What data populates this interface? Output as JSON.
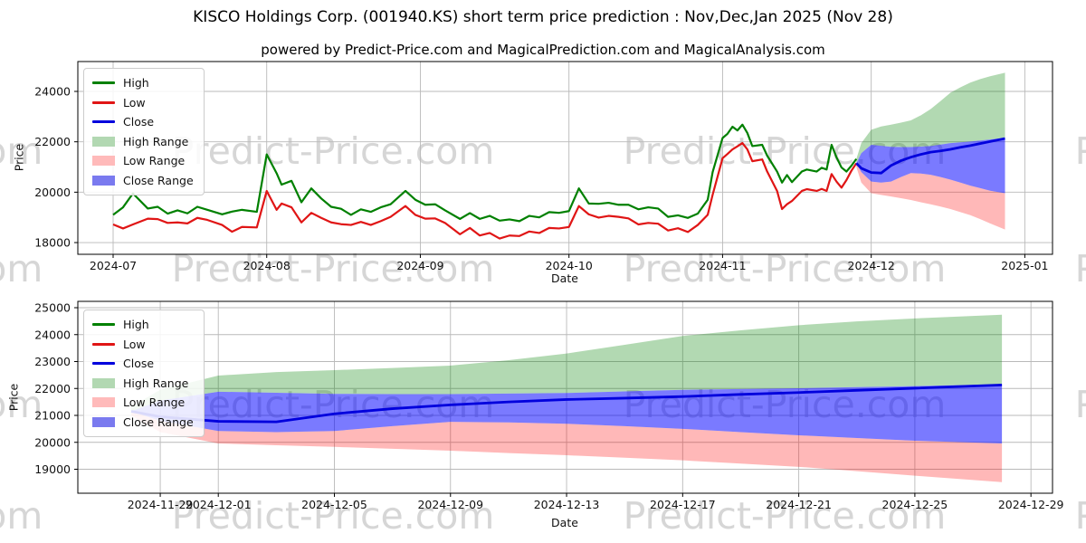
{
  "title": "KISCO Holdings Corp. (001940.KS) short term price prediction : Nov,Dec,Jan 2025 (Nov 28)",
  "subtitle": "powered by Predict-Price.com and MagicalPrediction.com and MagicalAnalysis.com",
  "watermark": {
    "text": "Predict-Price.com"
  },
  "colors": {
    "high": "#008000",
    "low": "#e01515",
    "close": "#0000dd",
    "high_range_fill": "rgba(0,128,0,0.30)",
    "low_range_fill": "rgba(255,0,0,0.28)",
    "close_range_fill": "rgba(0,0,255,0.52)",
    "high_range_swatch": "#b2d8b2",
    "low_range_swatch": "#ffbaba",
    "close_range_swatch": "#7a7aef",
    "grid": "#b9b9b9",
    "frame": "#000000"
  },
  "legend": {
    "items": [
      {
        "label": "High",
        "kind": "line",
        "color": "#008000"
      },
      {
        "label": "Low",
        "kind": "line",
        "color": "#e01515"
      },
      {
        "label": "Close",
        "kind": "line",
        "color": "#0000dd"
      },
      {
        "label": "High Range",
        "kind": "patch",
        "color": "#b2d8b2"
      },
      {
        "label": "Low Range",
        "kind": "patch",
        "color": "#ffbaba"
      },
      {
        "label": "Close Range",
        "kind": "patch",
        "color": "#7a7aef"
      }
    ]
  },
  "chart_data": [
    {
      "type": "line",
      "name": "historical_and_prediction",
      "xlabel": "Date",
      "ylabel": "Price",
      "x_unit": "days since 2024-07-01",
      "grid": true,
      "legend_position": "upper left",
      "xlim_days": [
        -7.1,
        189.6
      ],
      "ylim": [
        17530,
        25190
      ],
      "xticks": [
        {
          "label": "2024-07",
          "day": 0
        },
        {
          "label": "2024-08",
          "day": 31
        },
        {
          "label": "2024-09",
          "day": 62
        },
        {
          "label": "2024-10",
          "day": 92
        },
        {
          "label": "2024-11",
          "day": 123
        },
        {
          "label": "2024-12",
          "day": 153
        },
        {
          "label": "2025-01",
          "day": 184
        }
      ],
      "yticks": [
        18000,
        20000,
        22000,
        24000
      ],
      "series": {
        "high": {
          "name": "High",
          "days": [
            0,
            2,
            4,
            7,
            9,
            11,
            13,
            15,
            17,
            19,
            22,
            24,
            26,
            29,
            31,
            33,
            34,
            36,
            38,
            40,
            42,
            44,
            46,
            48,
            50,
            52,
            54,
            56,
            59,
            61,
            63,
            65,
            67,
            70,
            72,
            74,
            76,
            78,
            80,
            82,
            84,
            86,
            88,
            90,
            92,
            94,
            96,
            98,
            100,
            102,
            104,
            106,
            108,
            110,
            112,
            114,
            116,
            118,
            120,
            121,
            123,
            124,
            125,
            126,
            127,
            128,
            129,
            131,
            132,
            134,
            135,
            136,
            137,
            139,
            140,
            142,
            143,
            144,
            145,
            146,
            147,
            148,
            149,
            150
          ],
          "values": [
            19100,
            19400,
            19950,
            19350,
            19420,
            19150,
            19280,
            19160,
            19420,
            19300,
            19120,
            19230,
            19300,
            19220,
            21500,
            20750,
            20300,
            20450,
            19600,
            20150,
            19750,
            19420,
            19340,
            19100,
            19320,
            19220,
            19400,
            19520,
            20050,
            19700,
            19500,
            19520,
            19280,
            18940,
            19170,
            18940,
            19060,
            18870,
            18920,
            18850,
            19060,
            19000,
            19210,
            19180,
            19250,
            20150,
            19550,
            19540,
            19580,
            19500,
            19500,
            19320,
            19400,
            19350,
            19020,
            19080,
            18980,
            19150,
            19700,
            20800,
            22150,
            22320,
            22600,
            22450,
            22680,
            22350,
            21830,
            21880,
            21450,
            20820,
            20380,
            20680,
            20400,
            20820,
            20900,
            20820,
            20970,
            20900,
            21880,
            21380,
            20980,
            20820,
            21050,
            21320
          ]
        },
        "low": {
          "name": "Low",
          "days": [
            0,
            2,
            4,
            7,
            9,
            11,
            13,
            15,
            17,
            19,
            22,
            24,
            26,
            29,
            31,
            33,
            34,
            36,
            38,
            40,
            42,
            44,
            46,
            48,
            50,
            52,
            54,
            56,
            59,
            61,
            63,
            65,
            67,
            70,
            72,
            74,
            76,
            78,
            80,
            82,
            84,
            86,
            88,
            90,
            92,
            94,
            96,
            98,
            100,
            102,
            104,
            106,
            108,
            110,
            112,
            114,
            116,
            118,
            120,
            121,
            123,
            124,
            125,
            126,
            127,
            128,
            129,
            131,
            132,
            134,
            135,
            136,
            137,
            139,
            140,
            142,
            143,
            144,
            145,
            146,
            147,
            148,
            149,
            150
          ],
          "values": [
            18720,
            18560,
            18720,
            18950,
            18930,
            18780,
            18800,
            18760,
            18980,
            18900,
            18700,
            18430,
            18620,
            18600,
            20050,
            19300,
            19550,
            19400,
            18800,
            19180,
            18980,
            18800,
            18730,
            18700,
            18820,
            18700,
            18850,
            19020,
            19450,
            19100,
            18950,
            18960,
            18780,
            18330,
            18580,
            18280,
            18380,
            18160,
            18280,
            18260,
            18440,
            18380,
            18580,
            18560,
            18620,
            19450,
            19120,
            18990,
            19060,
            19020,
            18960,
            18720,
            18780,
            18750,
            18480,
            18570,
            18420,
            18700,
            19100,
            19900,
            21350,
            21520,
            21700,
            21820,
            21950,
            21700,
            21230,
            21300,
            20820,
            20050,
            19330,
            19520,
            19650,
            20050,
            20120,
            20050,
            20130,
            20050,
            20720,
            20420,
            20180,
            20480,
            20850,
            21150
          ]
        }
      },
      "prediction": {
        "days": [
          150,
          151,
          153,
          155,
          157,
          159,
          161,
          163,
          165,
          167,
          169,
          171,
          173,
          175,
          177,
          180
        ],
        "close": [
          21150,
          20950,
          20780,
          20760,
          21060,
          21250,
          21390,
          21500,
          21590,
          21640,
          21700,
          21780,
          21850,
          21930,
          22010,
          22130
        ],
        "close_max": [
          21150,
          21550,
          21880,
          21840,
          21800,
          21790,
          21790,
          21810,
          21830,
          21890,
          21950,
          21980,
          22010,
          22050,
          22090,
          22160
        ],
        "close_min": [
          21150,
          20800,
          20420,
          20380,
          20420,
          20600,
          20760,
          20740,
          20690,
          20600,
          20500,
          20380,
          20260,
          20160,
          20060,
          19960
        ],
        "high_max": [
          21320,
          21950,
          22480,
          22610,
          22680,
          22760,
          22850,
          23050,
          23300,
          23620,
          23950,
          24160,
          24350,
          24490,
          24600,
          24740
        ],
        "low_min": [
          21000,
          20380,
          19960,
          19890,
          19830,
          19760,
          19690,
          19600,
          19520,
          19430,
          19330,
          19210,
          19090,
          18930,
          18760,
          18520
        ]
      }
    },
    {
      "type": "line",
      "name": "prediction_detail",
      "xlabel": "Date",
      "ylabel": "Price",
      "x_unit": "days since 2024-07-01",
      "grid": true,
      "legend_position": "upper left",
      "xlim_days": [
        148.2,
        181.7
      ],
      "ylim": [
        18110,
        25235
      ],
      "xticks": [
        {
          "label": "2024-11-29",
          "day": 151
        },
        {
          "label": "2024-12-01",
          "day": 153
        },
        {
          "label": "2024-12-05",
          "day": 157
        },
        {
          "label": "2024-12-09",
          "day": 161
        },
        {
          "label": "2024-12-13",
          "day": 165
        },
        {
          "label": "2024-12-17",
          "day": 169
        },
        {
          "label": "2024-12-21",
          "day": 173
        },
        {
          "label": "2024-12-25",
          "day": 177
        },
        {
          "label": "2024-12-29",
          "day": 181
        }
      ],
      "yticks": [
        19000,
        20000,
        21000,
        22000,
        23000,
        24000,
        25000
      ],
      "prediction": {
        "days": [
          150,
          151,
          153,
          155,
          157,
          159,
          161,
          163,
          165,
          167,
          169,
          171,
          173,
          175,
          177,
          180
        ],
        "close": [
          21150,
          20950,
          20780,
          20760,
          21060,
          21250,
          21390,
          21500,
          21590,
          21640,
          21700,
          21780,
          21850,
          21930,
          22010,
          22130
        ],
        "close_max": [
          21150,
          21550,
          21880,
          21840,
          21800,
          21790,
          21790,
          21810,
          21830,
          21890,
          21950,
          21980,
          22010,
          22050,
          22090,
          22160
        ],
        "close_min": [
          21150,
          20800,
          20420,
          20380,
          20420,
          20600,
          20760,
          20740,
          20690,
          20600,
          20500,
          20380,
          20260,
          20160,
          20060,
          19960
        ],
        "high_max": [
          21320,
          21950,
          22480,
          22610,
          22680,
          22760,
          22850,
          23050,
          23300,
          23620,
          23950,
          24160,
          24350,
          24490,
          24600,
          24740
        ],
        "low_min": [
          21000,
          20380,
          19960,
          19890,
          19830,
          19760,
          19690,
          19600,
          19520,
          19430,
          19330,
          19210,
          19090,
          18930,
          18760,
          18520
        ]
      }
    }
  ]
}
